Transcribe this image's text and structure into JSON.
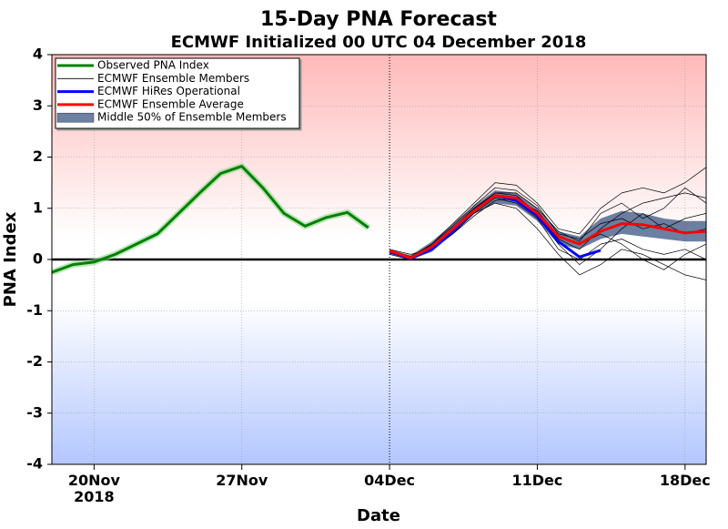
{
  "chart_data": {
    "type": "line",
    "title": "15-Day PNA Forecast",
    "subtitle": "ECMWF Initialized 00 UTC 04 December 2018",
    "x_label": "Date",
    "y_label": "PNA Index",
    "x": [
      "2018-11-18",
      "2018-11-19",
      "2018-11-20",
      "2018-11-21",
      "2018-11-22",
      "2018-11-23",
      "2018-11-24",
      "2018-11-25",
      "2018-11-26",
      "2018-11-27",
      "2018-11-28",
      "2018-11-29",
      "2018-11-30",
      "2018-12-01",
      "2018-12-02",
      "2018-12-03",
      "2018-12-04",
      "2018-12-05",
      "2018-12-06",
      "2018-12-07",
      "2018-12-08",
      "2018-12-09",
      "2018-12-10",
      "2018-12-11",
      "2018-12-12",
      "2018-12-13",
      "2018-12-14",
      "2018-12-15",
      "2018-12-16",
      "2018-12-17",
      "2018-12-18",
      "2018-12-19"
    ],
    "xlim": [
      "2018-11-18",
      "2018-12-19"
    ],
    "xticks": [
      {
        "value": "2018-11-20",
        "label": "20Nov\n2018"
      },
      {
        "value": "2018-11-27",
        "label": "27Nov"
      },
      {
        "value": "2018-12-04",
        "label": "04Dec"
      },
      {
        "value": "2018-12-11",
        "label": "11Dec"
      },
      {
        "value": "2018-12-18",
        "label": "18Dec"
      }
    ],
    "ylim": [
      -4,
      4
    ],
    "yticks": [
      -4,
      -3,
      -2,
      -1,
      0,
      1,
      2,
      3,
      4
    ],
    "grid": true,
    "legend": "upper left",
    "series": [
      {
        "name": "Observed PNA Index",
        "color": "#008000",
        "values": [
          -0.25,
          -0.1,
          -0.05,
          0.1,
          0.3,
          0.5,
          0.9,
          1.3,
          1.68,
          1.82,
          1.4,
          0.9,
          0.65,
          0.82,
          0.92,
          0.62,
          null,
          null,
          null,
          null,
          null,
          null,
          null,
          null,
          null,
          null,
          null,
          null,
          null,
          null,
          null,
          null
        ]
      },
      {
        "name": "ECMWF Ensemble Members",
        "color": "#000000",
        "members": [
          [
            null,
            null,
            null,
            null,
            null,
            null,
            null,
            null,
            null,
            null,
            null,
            null,
            null,
            null,
            null,
            null,
            0.15,
            0.05,
            0.3,
            0.7,
            1.1,
            1.5,
            1.45,
            1.1,
            0.6,
            0.5,
            1.0,
            1.3,
            1.4,
            1.3,
            1.5,
            1.8
          ],
          [
            null,
            null,
            null,
            null,
            null,
            null,
            null,
            null,
            null,
            null,
            null,
            null,
            null,
            null,
            null,
            null,
            0.2,
            0.1,
            0.2,
            0.5,
            0.9,
            1.1,
            1.0,
            0.6,
            0.1,
            -0.3,
            -0.1,
            0.2,
            0.1,
            -0.1,
            -0.3,
            -0.4
          ],
          [
            null,
            null,
            null,
            null,
            null,
            null,
            null,
            null,
            null,
            null,
            null,
            null,
            null,
            null,
            null,
            null,
            0.1,
            0.0,
            0.25,
            0.6,
            1.0,
            1.3,
            1.25,
            0.9,
            0.4,
            0.2,
            0.6,
            0.9,
            1.1,
            1.2,
            1.3,
            1.2
          ],
          [
            null,
            null,
            null,
            null,
            null,
            null,
            null,
            null,
            null,
            null,
            null,
            null,
            null,
            null,
            null,
            null,
            0.18,
            0.05,
            0.2,
            0.55,
            0.9,
            1.2,
            1.1,
            0.8,
            0.2,
            0.0,
            0.3,
            0.4,
            0.2,
            0.1,
            0.2,
            0.0
          ],
          [
            null,
            null,
            null,
            null,
            null,
            null,
            null,
            null,
            null,
            null,
            null,
            null,
            null,
            null,
            null,
            null,
            0.15,
            0.03,
            0.3,
            0.65,
            1.05,
            1.4,
            1.35,
            1.05,
            0.5,
            0.4,
            0.7,
            0.8,
            0.6,
            0.7,
            0.5,
            0.6
          ],
          [
            null,
            null,
            null,
            null,
            null,
            null,
            null,
            null,
            null,
            null,
            null,
            null,
            null,
            null,
            null,
            null,
            0.12,
            0.02,
            0.2,
            0.5,
            0.85,
            1.15,
            1.2,
            0.85,
            0.3,
            -0.1,
            0.2,
            0.6,
            0.9,
            0.6,
            0.8,
            0.9
          ],
          [
            null,
            null,
            null,
            null,
            null,
            null,
            null,
            null,
            null,
            null,
            null,
            null,
            null,
            null,
            null,
            null,
            0.17,
            0.06,
            0.28,
            0.62,
            1.0,
            1.25,
            1.15,
            0.95,
            0.45,
            0.3,
            0.5,
            0.3,
            0.0,
            -0.2,
            0.1,
            0.3
          ],
          [
            null,
            null,
            null,
            null,
            null,
            null,
            null,
            null,
            null,
            null,
            null,
            null,
            null,
            null,
            null,
            null,
            0.14,
            0.04,
            0.22,
            0.58,
            0.98,
            1.3,
            1.3,
            1.0,
            0.55,
            0.35,
            0.9,
            1.1,
            0.8,
            1.0,
            1.4,
            1.1
          ]
        ]
      },
      {
        "name": "ECMWF HiRes Operational",
        "color": "#0000ff",
        "values": [
          null,
          null,
          null,
          null,
          null,
          null,
          null,
          null,
          null,
          null,
          null,
          null,
          null,
          null,
          null,
          null,
          0.15,
          0.02,
          0.2,
          0.55,
          0.95,
          1.25,
          1.15,
          0.85,
          0.35,
          0.05,
          0.18,
          null,
          null,
          null,
          null,
          null
        ]
      },
      {
        "name": "ECMWF Ensemble Average",
        "color": "#ff0000",
        "values": [
          null,
          null,
          null,
          null,
          null,
          null,
          null,
          null,
          null,
          null,
          null,
          null,
          null,
          null,
          null,
          null,
          0.17,
          0.03,
          0.25,
          0.6,
          0.95,
          1.25,
          1.2,
          0.9,
          0.45,
          0.3,
          0.55,
          0.7,
          0.68,
          0.6,
          0.52,
          0.55
        ]
      },
      {
        "name": "Middle 50% of Ensemble Members",
        "color": "#2e4a7a",
        "lower": [
          null,
          null,
          null,
          null,
          null,
          null,
          null,
          null,
          null,
          null,
          null,
          null,
          null,
          null,
          null,
          null,
          0.12,
          0.0,
          0.15,
          0.5,
          0.9,
          1.1,
          1.05,
          0.75,
          0.3,
          0.2,
          0.4,
          0.5,
          0.45,
          0.4,
          0.35,
          0.35
        ],
        "upper": [
          null,
          null,
          null,
          null,
          null,
          null,
          null,
          null,
          null,
          null,
          null,
          null,
          null,
          null,
          null,
          null,
          0.2,
          0.08,
          0.35,
          0.7,
          1.05,
          1.35,
          1.3,
          1.0,
          0.55,
          0.45,
          0.8,
          0.95,
          0.9,
          0.8,
          0.75,
          0.75
        ]
      }
    ]
  }
}
